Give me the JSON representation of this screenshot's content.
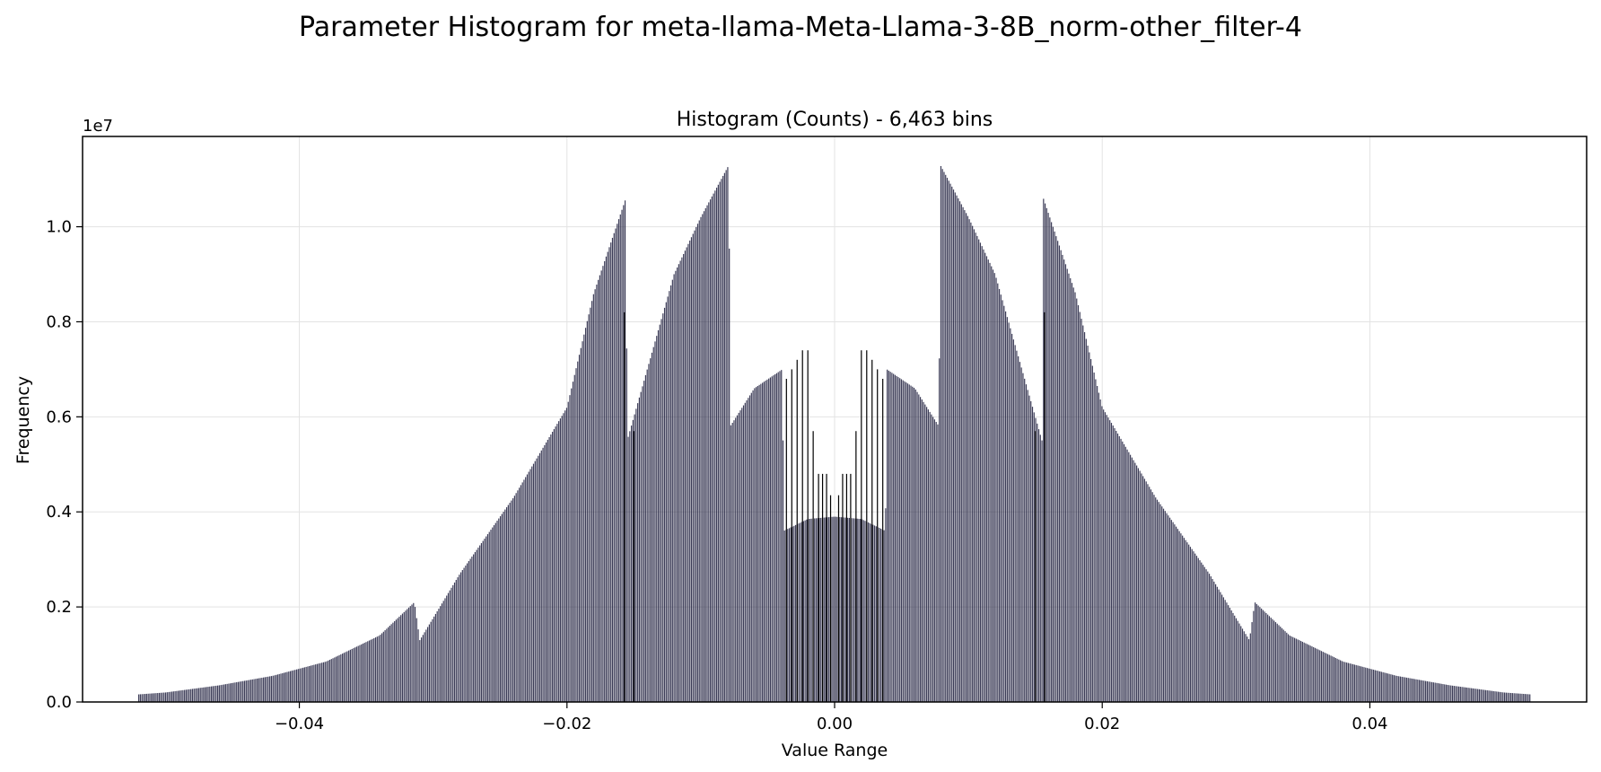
{
  "figure": {
    "suptitle": "Parameter Histogram for meta-llama-Meta-Llama-3-8B_norm-other_filter-4"
  },
  "chart_data": {
    "type": "bar",
    "title": "Histogram (Counts) - 6,463 bins",
    "xlabel": "Value Range",
    "ylabel": "Frequency",
    "y_offset_label": "1e7",
    "xlim": [
      -0.0562,
      0.0562
    ],
    "ylim": [
      0,
      1.19
    ],
    "y_scale": 10000000,
    "grid": true,
    "xticks": [
      -0.04,
      -0.02,
      0.0,
      0.02,
      0.04
    ],
    "xtick_labels": [
      "−0.04",
      "−0.02",
      "0.00",
      "0.02",
      "0.04"
    ],
    "yticks": [
      0.0,
      0.2,
      0.4,
      0.6,
      0.8,
      1.0
    ],
    "ytick_labels": [
      "0.0",
      "0.2",
      "0.4",
      "0.6",
      "0.8",
      "1.0"
    ],
    "bin_count_label": "6,463 bins",
    "bar_color": "#1a1a3a",
    "edge_color": "#000000",
    "symmetric": true,
    "envelope_right": {
      "x": [
        0.0,
        0.002,
        0.0038,
        0.0039,
        0.006,
        0.0078,
        0.0079,
        0.01,
        0.012,
        0.0155,
        0.0156,
        0.018,
        0.02,
        0.024,
        0.028,
        0.031,
        0.0314,
        0.034,
        0.038,
        0.042,
        0.046,
        0.05,
        0.052
      ],
      "values": [
        0.39,
        0.385,
        0.36,
        0.7,
        0.66,
        0.58,
        1.13,
        1.02,
        0.9,
        0.55,
        1.06,
        0.86,
        0.62,
        0.43,
        0.27,
        0.13,
        0.21,
        0.14,
        0.085,
        0.055,
        0.035,
        0.02,
        0.016
      ]
    },
    "spikes_right": {
      "x": [
        0.0003,
        0.0006,
        0.0009,
        0.0012,
        0.0016,
        0.002,
        0.0024,
        0.0028,
        0.0032,
        0.0036,
        0.015,
        0.0157
      ],
      "values": [
        0.435,
        0.48,
        0.48,
        0.48,
        0.57,
        0.74,
        0.74,
        0.72,
        0.7,
        0.68,
        0.57,
        0.82
      ]
    }
  }
}
